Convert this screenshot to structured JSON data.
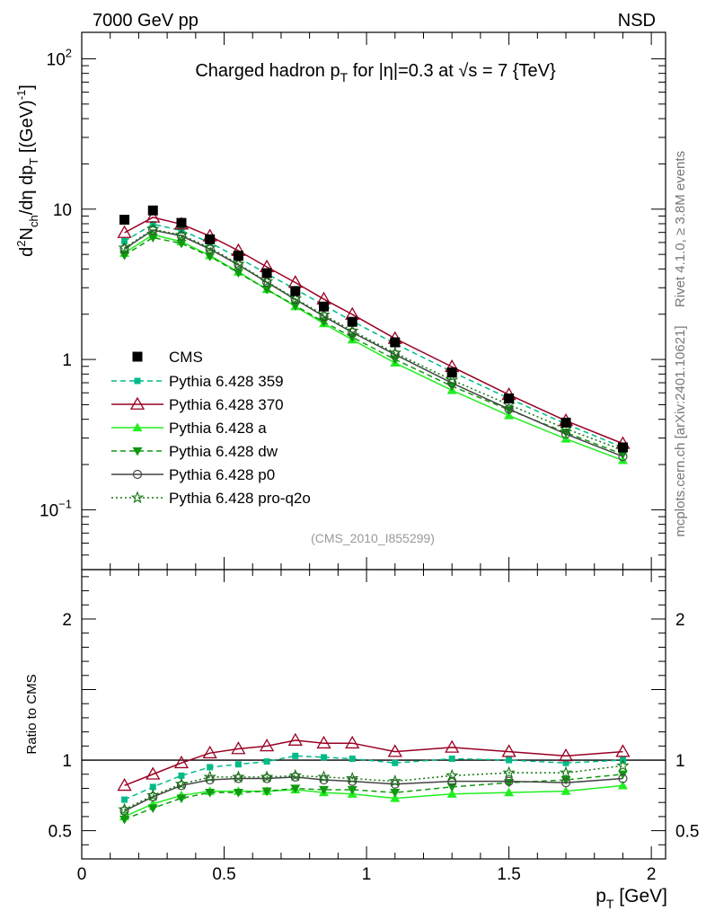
{
  "header": {
    "left": "7000 GeV pp",
    "right": "NSD"
  },
  "side_labels": {
    "rivet": "Rivet 4.1.0, ≥ 3.8M events",
    "mcplots": "mcplots.cern.ch [arXiv:2401.10621]"
  },
  "chart_data": {
    "type": "line",
    "title": "Charged hadron p_T for |η|=0.3 at √s = 7 {TeV}",
    "analysis_id": "(CMS_2010_I855299)",
    "xlabel": "p_T [GeV]",
    "ylabel": "d²N_ch/dη dp_T [(GeV)⁻¹]",
    "ratio_ylabel": "Ratio to CMS",
    "xlim": [
      0,
      2.05
    ],
    "ylim": [
      0.04,
      150
    ],
    "yscale": "log",
    "ratio_ylim": [
      0.3,
      2.35
    ],
    "x_ticks": [
      "0",
      "0.5",
      "1",
      "1.5",
      "2"
    ],
    "y_ticks": [
      "10⁻¹",
      "1",
      "10",
      "10²"
    ],
    "ratio_ticks": [
      "0.5",
      "1",
      "2"
    ],
    "x": [
      0.15,
      0.25,
      0.35,
      0.45,
      0.55,
      0.65,
      0.75,
      0.85,
      0.95,
      1.1,
      1.3,
      1.5,
      1.7,
      1.9
    ],
    "data": {
      "name": "CMS",
      "values": [
        8.5,
        9.8,
        8.1,
        6.3,
        4.9,
        3.75,
        2.85,
        2.25,
        1.78,
        1.3,
        0.82,
        0.55,
        0.38,
        0.26
      ]
    },
    "series": [
      {
        "name": "Pythia 6.428 359",
        "color": "#00bb88",
        "dash": "6,4",
        "marker": "square",
        "ratios": [
          0.72,
          0.81,
          0.89,
          0.95,
          0.97,
          0.99,
          1.03,
          1.02,
          1.01,
          0.98,
          1.01,
          1.0,
          0.98,
          1.0
        ]
      },
      {
        "name": "Pythia 6.428 370",
        "color": "#990022",
        "dash": "",
        "marker": "triangle-open",
        "ratios": [
          0.82,
          0.9,
          0.98,
          1.05,
          1.08,
          1.1,
          1.14,
          1.12,
          1.12,
          1.06,
          1.09,
          1.06,
          1.03,
          1.06
        ]
      },
      {
        "name": "Pythia 6.428 a",
        "color": "#22ee22",
        "dash": "",
        "marker": "triangle",
        "ratios": [
          0.6,
          0.69,
          0.75,
          0.78,
          0.78,
          0.78,
          0.79,
          0.77,
          0.76,
          0.73,
          0.76,
          0.77,
          0.78,
          0.82
        ]
      },
      {
        "name": "Pythia 6.428 dw",
        "color": "#119911",
        "dash": "6,4",
        "marker": "triangle-down",
        "ratios": [
          0.58,
          0.66,
          0.73,
          0.77,
          0.77,
          0.78,
          0.8,
          0.79,
          0.79,
          0.77,
          0.81,
          0.84,
          0.86,
          0.9
        ]
      },
      {
        "name": "Pythia 6.428 p0",
        "color": "#444444",
        "dash": "",
        "marker": "circle-open",
        "ratios": [
          0.64,
          0.74,
          0.82,
          0.86,
          0.87,
          0.87,
          0.88,
          0.86,
          0.85,
          0.83,
          0.85,
          0.85,
          0.84,
          0.87
        ]
      },
      {
        "name": "Pythia 6.428 pro-q2o",
        "color": "#117711",
        "dash": "2,3",
        "marker": "star",
        "ratios": [
          0.65,
          0.75,
          0.83,
          0.88,
          0.88,
          0.88,
          0.89,
          0.88,
          0.87,
          0.85,
          0.89,
          0.91,
          0.91,
          0.96
        ]
      }
    ]
  }
}
